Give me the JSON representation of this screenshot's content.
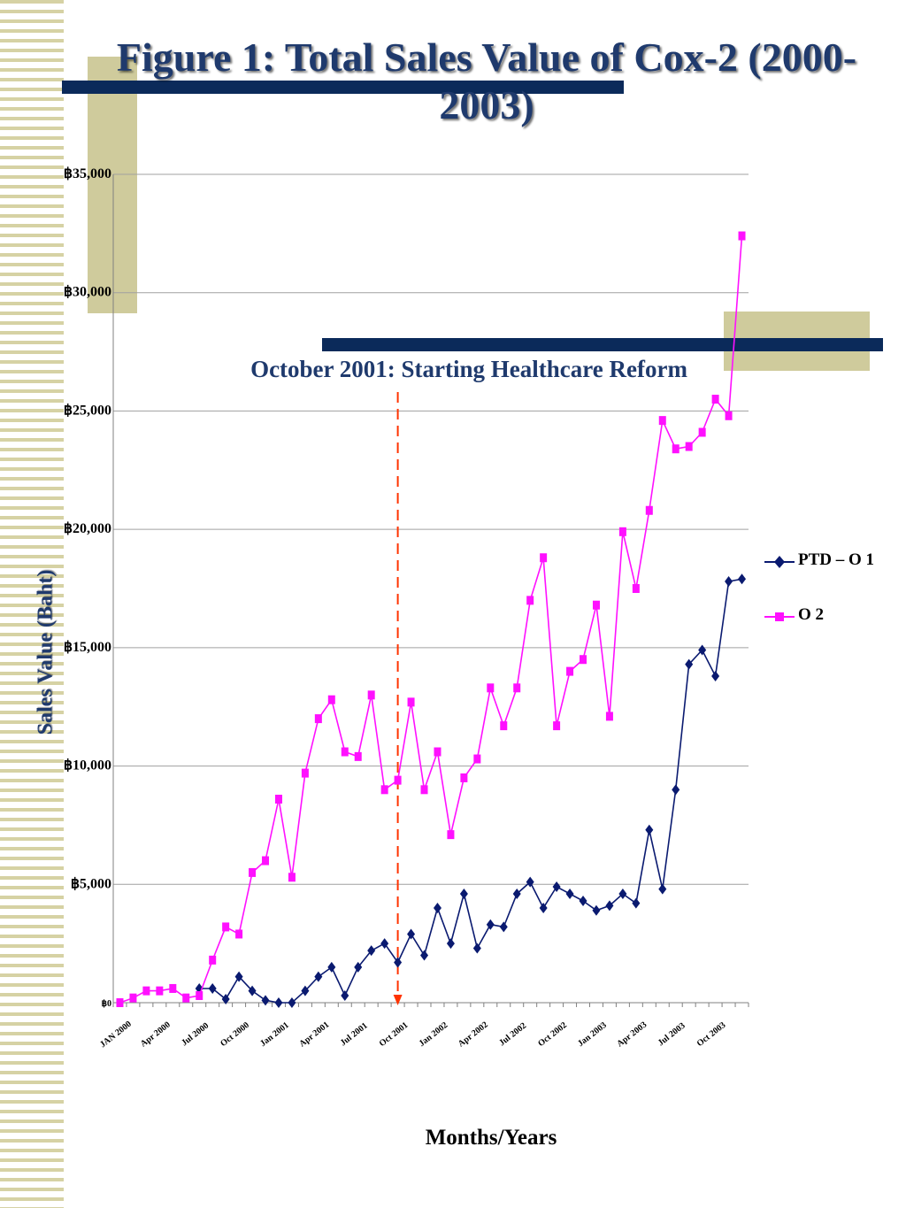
{
  "title": "Figure 1: Total Sales Value of Cox-2 (2000-2003)",
  "annotation": "October 2001: Starting Healthcare Reform",
  "colors": {
    "navy": "#0b2a5a",
    "khaki": "#cfcb9c",
    "series_o1": "#0a1a70",
    "series_o2": "#ff10ff",
    "marker_line": "#ff3300"
  },
  "chart_data": {
    "type": "line",
    "title": "Figure 1: Total Sales Value of Cox-2 (2000-2003)",
    "xlabel": "Months/Years",
    "ylabel": "Sales Value (Baht)",
    "ylim": [
      0,
      35000
    ],
    "grid": true,
    "legend_position": "right",
    "y_ticks": [
      0,
      5000,
      10000,
      15000,
      20000,
      25000,
      30000,
      35000
    ],
    "y_tick_labels": [
      "฿0",
      "฿5,000",
      "฿10,000",
      "฿15,000",
      "฿20,000",
      "฿25,000",
      "฿30,000",
      "฿35,000"
    ],
    "x_tick_labels": [
      "JAN 2000",
      "Apr 2000",
      "Jul 2000",
      "Oct 2000",
      "Jan 2001",
      "Apr 2001",
      "Jul 2001",
      "Oct 2001",
      "Jan 2002",
      "Apr 2002",
      "Jul 2002",
      "Oct 2002",
      "Jan 2003",
      "Apr 2003",
      "Jul 2003",
      "Oct 2003"
    ],
    "n_months": 48,
    "event_marker_month_index": 21,
    "series": [
      {
        "name": "PTD – O 1",
        "marker": "diamond",
        "start_index": 6,
        "values": [
          600,
          600,
          150,
          1100,
          500,
          100,
          0,
          0,
          500,
          1100,
          1500,
          300,
          1500,
          2200,
          2500,
          1700,
          2900,
          2000,
          4000,
          2500,
          4600,
          2300,
          3300,
          3200,
          4600,
          5100,
          4000,
          4900,
          4600,
          4300,
          3900,
          4100,
          4600,
          4200,
          7300,
          4800,
          9000,
          14300,
          14900,
          13800,
          17800,
          17900
        ]
      },
      {
        "name": "O 2",
        "marker": "square",
        "start_index": 0,
        "values": [
          0,
          200,
          500,
          500,
          600,
          200,
          300,
          1800,
          3200,
          2900,
          5500,
          6000,
          8600,
          5300,
          9700,
          12000,
          12800,
          10600,
          10400,
          13000,
          9000,
          9400,
          12700,
          9000,
          10600,
          7100,
          9500,
          10300,
          13300,
          11700,
          13300,
          17000,
          18800,
          11700,
          14000,
          14500,
          16800,
          12100,
          19900,
          17500,
          20800,
          24600,
          23400,
          23500,
          24100,
          25500,
          24800,
          32400
        ]
      }
    ]
  }
}
